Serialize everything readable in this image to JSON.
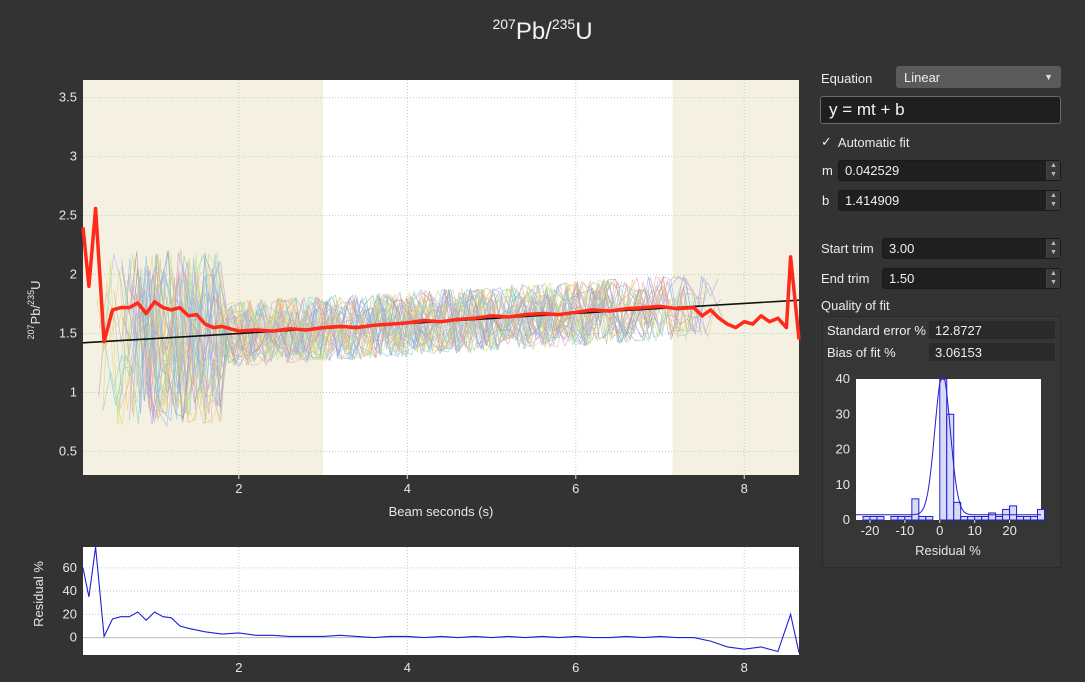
{
  "title": {
    "base1": "Pb",
    "sup1": "207",
    "sep": "/",
    "base2": "U",
    "sup2": "235"
  },
  "main_plot": {
    "ylabel_sup1": "207",
    "ylabel_base1": "Pb/",
    "ylabel_sup2": "235",
    "ylabel_base2": "U",
    "xlabel": "Beam seconds (s)",
    "x_ticks": [
      "2",
      "4",
      "6",
      "8"
    ],
    "y_ticks": [
      "0.5",
      "1",
      "1.5",
      "2",
      "2.5",
      "3",
      "3.5"
    ]
  },
  "residual_plot": {
    "ylabel": "Residual %",
    "x_ticks": [
      "2",
      "4",
      "6",
      "8"
    ],
    "y_ticks": [
      "0",
      "20",
      "40",
      "60"
    ]
  },
  "controls": {
    "equation_label": "Equation",
    "equation_value": "Linear",
    "formula": "y = mt + b",
    "automatic_fit_label": "Automatic fit",
    "m_label": "m",
    "m_value": "0.042529",
    "b_label": "b",
    "b_value": "1.414909",
    "start_trim_label": "Start trim",
    "start_trim_value": "3.00",
    "end_trim_label": "End trim",
    "end_trim_value": "1.50",
    "quality_label": "Quality of fit",
    "std_error_label": "Standard error %",
    "std_error_value": "12.8727",
    "bias_label": "Bias of fit %",
    "bias_value": "3.06153"
  },
  "histogram": {
    "xlabel": "Residual %",
    "x_ticks": [
      "-20",
      "-10",
      "0",
      "10",
      "20"
    ],
    "y_ticks": [
      "0",
      "10",
      "20",
      "30",
      "40"
    ]
  },
  "chart_data": [
    {
      "type": "line",
      "xlim": [
        0.15,
        8.65
      ],
      "ylim": [
        0.3,
        3.65
      ],
      "grid": true,
      "trim_regions": [
        [
          0.15,
          3.0
        ],
        [
          7.15,
          8.65
        ]
      ],
      "fit": {
        "m": 0.042529,
        "b": 1.414909
      },
      "series": [
        {
          "x": [
            0.15,
            0.22,
            0.3,
            0.4,
            0.5,
            0.6,
            0.7,
            0.8,
            0.9,
            1.0,
            1.1,
            1.2,
            1.3,
            1.4,
            1.5,
            1.6,
            1.7,
            1.8,
            1.9,
            2.0,
            2.2,
            2.4,
            2.6,
            2.8,
            3.0,
            3.2,
            3.4,
            3.6,
            3.8,
            4.0,
            4.2,
            4.4,
            4.6,
            4.8,
            5.0,
            5.2,
            5.4,
            5.6,
            5.8,
            6.0,
            6.2,
            6.4,
            6.6,
            6.8,
            7.0,
            7.2,
            7.4,
            7.5,
            7.6,
            7.7,
            7.8,
            7.9,
            8.0,
            8.1,
            8.2,
            8.3,
            8.4,
            8.5,
            8.55,
            8.6,
            8.65
          ],
          "y": [
            2.4,
            1.9,
            2.56,
            1.43,
            1.7,
            1.72,
            1.72,
            1.76,
            1.67,
            1.77,
            1.72,
            1.7,
            1.72,
            1.65,
            1.66,
            1.58,
            1.55,
            1.56,
            1.54,
            1.52,
            1.53,
            1.52,
            1.54,
            1.53,
            1.55,
            1.56,
            1.55,
            1.57,
            1.58,
            1.59,
            1.61,
            1.6,
            1.62,
            1.63,
            1.65,
            1.64,
            1.66,
            1.67,
            1.66,
            1.68,
            1.7,
            1.69,
            1.71,
            1.72,
            1.73,
            1.71,
            1.72,
            1.65,
            1.7,
            1.63,
            1.58,
            1.55,
            1.6,
            1.58,
            1.65,
            1.6,
            1.63,
            1.55,
            2.15,
            1.8,
            1.45
          ]
        }
      ]
    },
    {
      "type": "line",
      "xlim": [
        0.15,
        8.65
      ],
      "ylim": [
        -15,
        78
      ],
      "grid": true,
      "series": [
        {
          "x": [
            0.15,
            0.22,
            0.3,
            0.4,
            0.5,
            0.6,
            0.7,
            0.8,
            0.9,
            1.0,
            1.1,
            1.2,
            1.3,
            1.4,
            1.6,
            1.8,
            2.0,
            2.2,
            2.4,
            2.6,
            2.8,
            3.0,
            3.2,
            3.4,
            3.6,
            3.8,
            4.0,
            4.2,
            4.4,
            4.6,
            4.8,
            5.0,
            5.2,
            5.4,
            5.6,
            5.8,
            6.0,
            6.2,
            6.4,
            6.6,
            6.8,
            7.0,
            7.2,
            7.4,
            7.6,
            7.8,
            8.0,
            8.2,
            8.4,
            8.55,
            8.65
          ],
          "y": [
            60,
            35,
            78,
            1,
            16,
            18,
            18,
            22,
            15,
            22,
            18,
            17,
            10,
            8,
            5,
            3,
            4,
            2,
            2,
            1,
            1,
            1,
            2,
            1,
            0,
            1,
            1,
            0,
            1,
            0,
            1,
            0,
            1,
            0,
            1,
            0,
            1,
            0,
            0,
            1,
            0,
            1,
            0,
            0,
            -3,
            -8,
            -10,
            -8,
            -12,
            20,
            -13
          ]
        }
      ]
    },
    {
      "type": "bar",
      "xlim": [
        -24,
        29
      ],
      "ylim": [
        0,
        40
      ],
      "bins": [
        -22,
        -20,
        -18,
        -16,
        -14,
        -12,
        -10,
        -8,
        -6,
        -4,
        -2,
        0,
        2,
        4,
        6,
        8,
        10,
        12,
        14,
        16,
        18,
        20,
        22,
        24,
        26,
        28
      ],
      "values": [
        1,
        1,
        1,
        0,
        1,
        1,
        1,
        6,
        1,
        1,
        0,
        40,
        30,
        5,
        1,
        1,
        1,
        1,
        2,
        1,
        3,
        4,
        1,
        1,
        1,
        3
      ]
    }
  ]
}
